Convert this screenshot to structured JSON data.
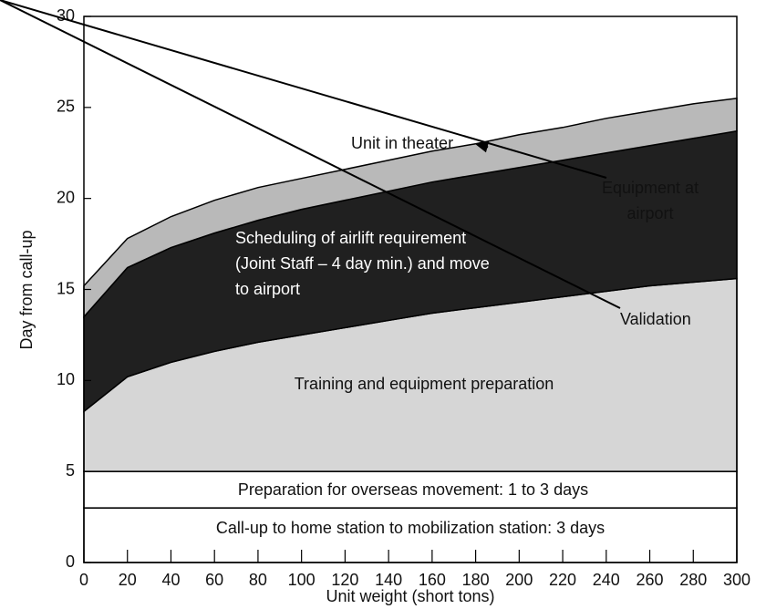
{
  "chart_data": {
    "type": "stacked_area",
    "x_label": "Unit weight (short tons)",
    "y_label": "Day from call-up",
    "x": [
      0,
      20,
      40,
      60,
      80,
      100,
      120,
      140,
      160,
      180,
      200,
      220,
      240,
      260,
      280,
      300
    ],
    "xlim": [
      0,
      300
    ],
    "xticks": [
      0,
      20,
      40,
      60,
      80,
      100,
      120,
      140,
      160,
      180,
      200,
      220,
      240,
      260,
      280,
      300
    ],
    "ylim": [
      0,
      30
    ],
    "yticks": [
      0,
      5,
      10,
      15,
      20,
      25,
      30
    ],
    "series": [
      {
        "name": "Call-up to home station to mobilization station:  3 days",
        "color": "#ffffff",
        "values": [
          3,
          3,
          3,
          3,
          3,
          3,
          3,
          3,
          3,
          3,
          3,
          3,
          3,
          3,
          3,
          3
        ]
      },
      {
        "name": "Preparation for overseas movement:  1 to 3 days",
        "color": "#ffffff",
        "values": [
          2,
          2,
          2,
          2,
          2,
          2,
          2,
          2,
          2,
          2,
          2,
          2,
          2,
          2,
          2,
          2
        ]
      },
      {
        "name": "Training and equipment preparation",
        "color": "#d6d6d6",
        "values": [
          3.3,
          5.2,
          6,
          6.6,
          7.1,
          7.5,
          7.9,
          8.3,
          8.7,
          9.0,
          9.3,
          9.6,
          9.9,
          10.2,
          10.4,
          10.6
        ]
      },
      {
        "name": "Scheduling of airlift requirement\n(Joint Staff – 4 day min.) and move\nto airport",
        "color": "#202020",
        "values": [
          5.2,
          6.0,
          6.3,
          6.5,
          6.7,
          6.9,
          7.0,
          7.1,
          7.2,
          7.3,
          7.4,
          7.5,
          7.6,
          7.7,
          7.9,
          8.1
        ]
      },
      {
        "color": "#b9b9b9",
        "values": [
          1.7,
          1.6,
          1.7,
          1.8,
          1.8,
          1.7,
          1.7,
          1.7,
          1.7,
          1.7,
          1.8,
          1.8,
          1.9,
          1.9,
          1.9,
          1.8
        ]
      }
    ],
    "annotations": [
      "Unit in theater",
      "Equipment at\nairport",
      "Validation"
    ]
  }
}
